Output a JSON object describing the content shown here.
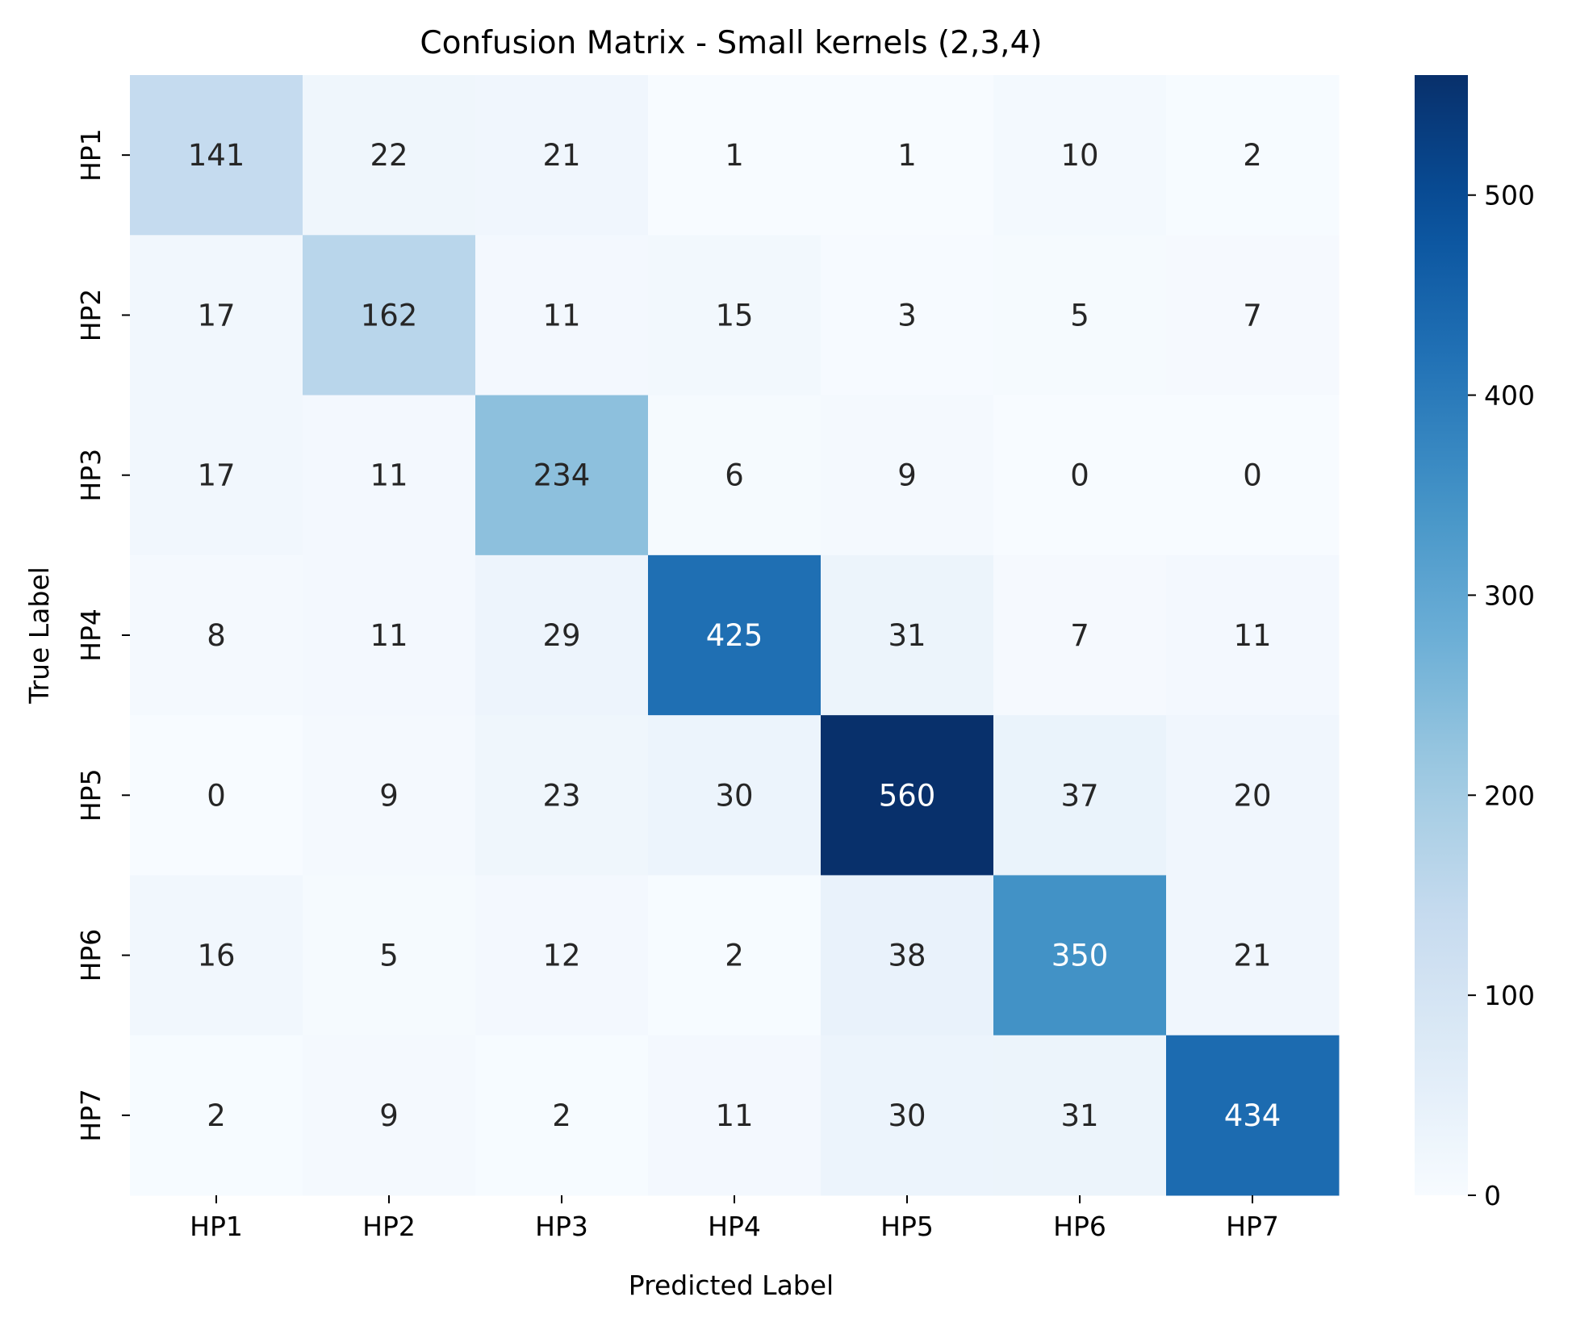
{
  "chart_data": {
    "type": "heatmap",
    "title": "Confusion Matrix - Small kernels (2,3,4)",
    "xlabel": "Predicted Label",
    "ylabel": "True Label",
    "x_categories": [
      "HP1",
      "HP2",
      "HP3",
      "HP4",
      "HP5",
      "HP6",
      "HP7"
    ],
    "y_categories": [
      "HP1",
      "HP2",
      "HP3",
      "HP4",
      "HP5",
      "HP6",
      "HP7"
    ],
    "values": [
      [
        141,
        22,
        21,
        1,
        1,
        10,
        2
      ],
      [
        17,
        162,
        11,
        15,
        3,
        5,
        7
      ],
      [
        17,
        11,
        234,
        6,
        9,
        0,
        0
      ],
      [
        8,
        11,
        29,
        425,
        31,
        7,
        11
      ],
      [
        0,
        9,
        23,
        30,
        560,
        37,
        20
      ],
      [
        16,
        5,
        12,
        2,
        38,
        350,
        21
      ],
      [
        2,
        9,
        2,
        11,
        30,
        31,
        434
      ]
    ],
    "colormap": "Blues",
    "colorbar": {
      "range": [
        0,
        560
      ],
      "ticks": [
        0,
        100,
        200,
        300,
        400,
        500
      ]
    },
    "colors": {
      "low": "#f7fbff",
      "high": "#08306b",
      "text_dark": "#262626",
      "text_light": "#ffffff"
    }
  }
}
